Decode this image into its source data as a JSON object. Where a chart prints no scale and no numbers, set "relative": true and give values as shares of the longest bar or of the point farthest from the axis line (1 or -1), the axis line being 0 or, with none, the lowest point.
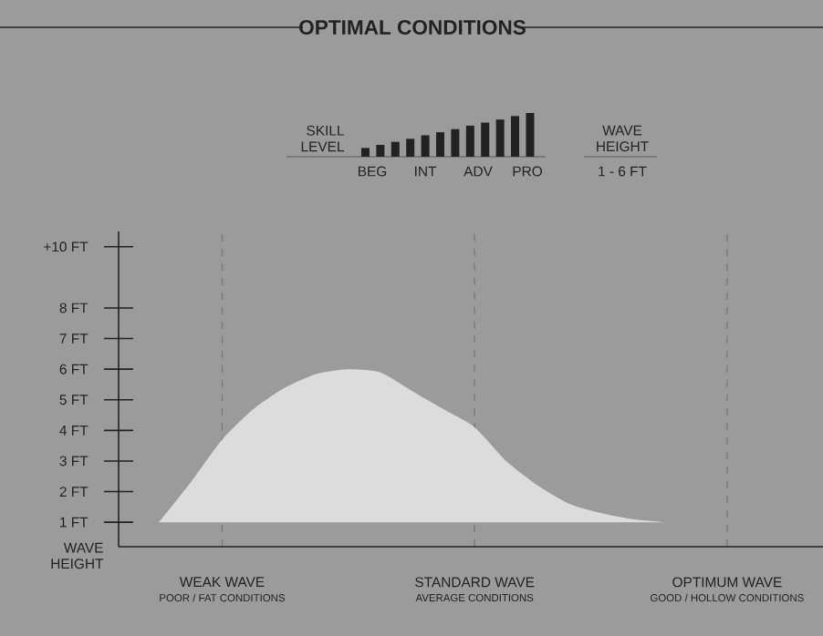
{
  "chart_data": [
    {
      "type": "area",
      "ylabel": "WAVE HEIGHT",
      "categories": [
        null,
        null,
        "WEAK WAVE",
        null,
        null,
        null,
        null,
        null,
        null,
        null,
        "STANDARD WAVE",
        null,
        null,
        null,
        null,
        null,
        null,
        null,
        "OPTIMUM WAVE"
      ],
      "series": [
        {
          "values": [
            1,
            2.3,
            3.7,
            4.7,
            5.4,
            5.85,
            6,
            5.9,
            5.3,
            4.7,
            4.1,
            3.0,
            2.2,
            1.6,
            1.3,
            1.1,
            1,
            null,
            null
          ],
          "color": "#dcdcdc"
        }
      ],
      "ylim": [
        0.2,
        10.5
      ],
      "yticks": [
        {
          "value": 1,
          "label": "1 FT"
        },
        {
          "value": 2,
          "label": "2 FT"
        },
        {
          "value": 3,
          "label": "3 FT"
        },
        {
          "value": 4,
          "label": "4 FT"
        },
        {
          "value": 5,
          "label": "5 FT"
        },
        {
          "value": 6,
          "label": "6 FT"
        },
        {
          "value": 7,
          "label": "7 FT"
        },
        {
          "value": 8,
          "label": "8 FT"
        },
        {
          "value": 10,
          "label": "+10 FT"
        }
      ],
      "grid": "x",
      "annotations": [
        "POOR / FAT CONDITIONS",
        "AVERAGE CONDITIONS",
        "GOOD / HOLLOW CONDITIONS"
      ]
    },
    {
      "type": "bar",
      "relative": true,
      "title": "OPTIMAL CONDITIONS",
      "ylabel": "SKILL LEVEL",
      "categories": [
        null,
        null,
        null,
        null,
        null,
        null,
        null,
        null,
        null,
        null,
        null,
        null
      ],
      "values": [
        0.2,
        0.27,
        0.34,
        0.41,
        0.49,
        0.56,
        0.63,
        0.71,
        0.78,
        0.85,
        0.93,
        1
      ],
      "color": "#222222",
      "annotations": [
        "BEG",
        "INT",
        "ADV",
        "PRO",
        "WAVE HEIGHT",
        "1 - 6 FT"
      ]
    }
  ]
}
